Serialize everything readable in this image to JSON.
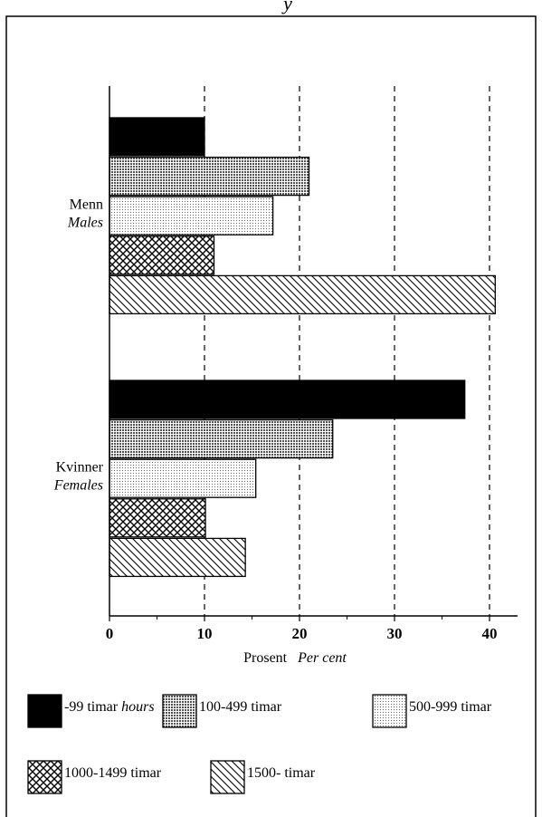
{
  "chart_data": {
    "type": "barh",
    "title": "y",
    "categories": [
      "Menn",
      "Kvinner"
    ],
    "categories_en": [
      "Males",
      "Females"
    ],
    "xlabel": "Prosent",
    "xlabel_en": "Per cent",
    "legend_unit": "hours",
    "series": [
      {
        "name": "-99 timar",
        "color": "#000000",
        "pattern": "solid",
        "values": [
          10,
          37.4
        ]
      },
      {
        "name": "100-499 timar",
        "color": "#000000",
        "pattern": "dense-dots",
        "values": [
          21,
          23.5
        ]
      },
      {
        "name": "500-999 timar",
        "color": "#000000",
        "pattern": "light-dots",
        "values": [
          17.2,
          15.4
        ]
      },
      {
        "name": "1000-1499 timar",
        "color": "#000000",
        "pattern": "crosshatch",
        "values": [
          11,
          10.1
        ]
      },
      {
        "name": "1500- timar",
        "color": "#000000",
        "pattern": "diagonal",
        "values": [
          40.6,
          14.3
        ]
      }
    ],
    "xlim": [
      0,
      43
    ],
    "xticks": [
      0,
      10,
      20,
      30,
      40
    ],
    "xminor_ticks": [
      5,
      15,
      25,
      35
    ],
    "grid": true
  }
}
